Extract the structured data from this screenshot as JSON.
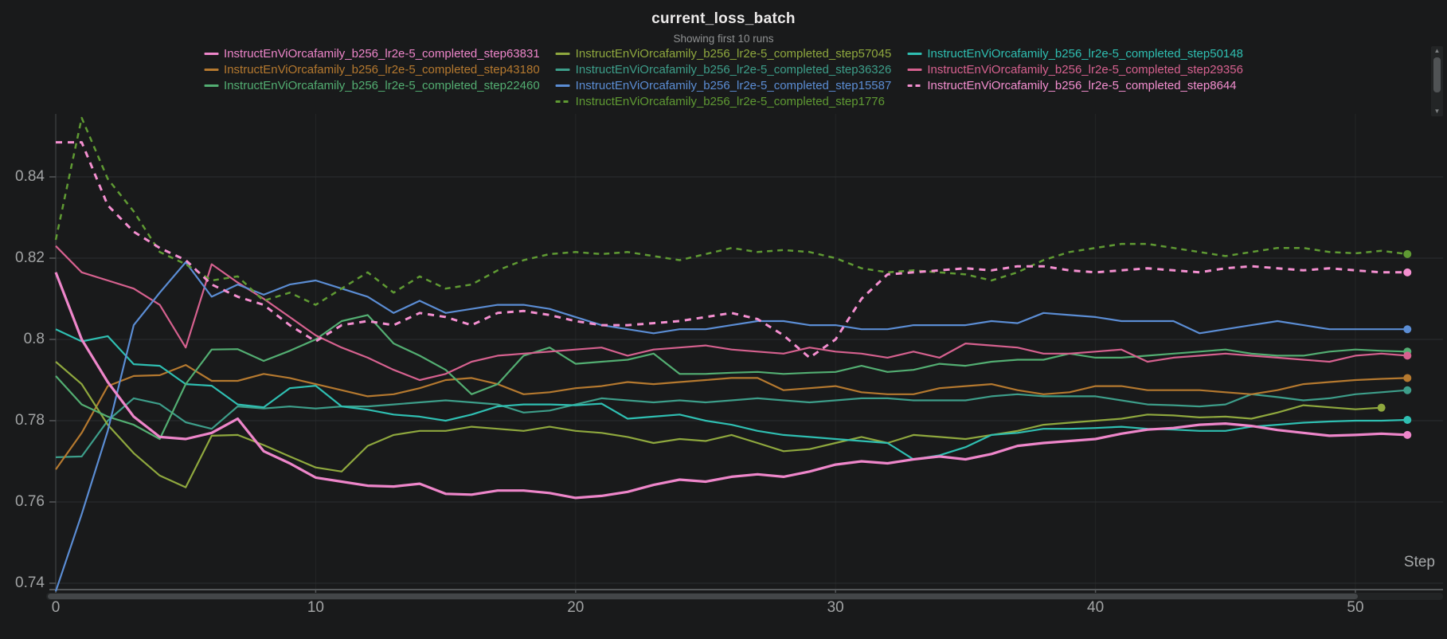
{
  "header": {
    "title": "current_loss_batch",
    "subtitle": "Showing first 10 runs"
  },
  "axes": {
    "x_label": "Step",
    "x_ticks": [
      0,
      10,
      20,
      30,
      40,
      50
    ],
    "y_ticks": [
      "0.84",
      "0.82",
      "0.8",
      "0.78",
      "0.76",
      "0.74"
    ],
    "y_tick_values": [
      0.84,
      0.82,
      0.8,
      0.78,
      0.76,
      0.74
    ]
  },
  "chart_data": {
    "type": "line",
    "title": "current_loss_batch",
    "subtitle": "Showing first 10 runs",
    "xlabel": "Step",
    "ylabel": "",
    "x_start": 0,
    "x_step": 1,
    "xlim": [
      0,
      53.5
    ],
    "ylim": [
      0.726,
      0.857
    ],
    "grid": true,
    "legend_position": "top",
    "series": [
      {
        "name": "InstructEnViOrcafamily_b256_lr2e-5_completed_step63831",
        "color": "#ee86ca",
        "dash": null,
        "width": 3.2,
        "values": [
          0.8165,
          0.8,
          0.7895,
          0.781,
          0.776,
          0.7755,
          0.777,
          0.7805,
          0.7725,
          0.7695,
          0.766,
          0.765,
          0.764,
          0.7638,
          0.7645,
          0.762,
          0.7618,
          0.7628,
          0.7628,
          0.7622,
          0.761,
          0.7615,
          0.7625,
          0.7642,
          0.7655,
          0.765,
          0.7662,
          0.7668,
          0.7662,
          0.7675,
          0.7692,
          0.77,
          0.7695,
          0.7705,
          0.7712,
          0.7705,
          0.7718,
          0.7738,
          0.7745,
          0.775,
          0.7755,
          0.7768,
          0.7778,
          0.7782,
          0.779,
          0.7793,
          0.7787,
          0.7777,
          0.777,
          0.7763,
          0.7765,
          0.7768,
          0.7765
        ]
      },
      {
        "name": "InstructEnViOrcafamily_b256_lr2e-5_completed_step57045",
        "color": "#8fa83e",
        "dash": null,
        "width": 2.2,
        "values": [
          0.7945,
          0.789,
          0.779,
          0.772,
          0.7665,
          0.7636,
          0.7763,
          0.7765,
          0.774,
          0.7712,
          0.7685,
          0.7675,
          0.7738,
          0.7765,
          0.7775,
          0.7775,
          0.7785,
          0.778,
          0.7775,
          0.7785,
          0.7775,
          0.777,
          0.776,
          0.7745,
          0.7755,
          0.775,
          0.7765,
          0.7745,
          0.7725,
          0.773,
          0.7745,
          0.776,
          0.7745,
          0.7765,
          0.776,
          0.7755,
          0.7765,
          0.7775,
          0.779,
          0.7795,
          0.78,
          0.7805,
          0.7815,
          0.7813,
          0.7808,
          0.781,
          0.7805,
          0.782,
          0.7838,
          0.7833,
          0.7828,
          0.7832
        ]
      },
      {
        "name": "InstructEnViOrcafamily_b256_lr2e-5_completed_step50148",
        "color": "#2fbfb2",
        "dash": null,
        "width": 2.2,
        "values": [
          0.8025,
          0.7995,
          0.8008,
          0.7939,
          0.7935,
          0.789,
          0.7886,
          0.784,
          0.7833,
          0.788,
          0.7886,
          0.7835,
          0.7827,
          0.7815,
          0.781,
          0.78,
          0.7815,
          0.7835,
          0.784,
          0.784,
          0.7838,
          0.7842,
          0.7805,
          0.781,
          0.7815,
          0.78,
          0.779,
          0.7775,
          0.7765,
          0.776,
          0.7755,
          0.775,
          0.7745,
          0.7705,
          0.7715,
          0.7735,
          0.7765,
          0.777,
          0.778,
          0.778,
          0.7782,
          0.7785,
          0.778,
          0.7778,
          0.7775,
          0.7775,
          0.7785,
          0.779,
          0.7795,
          0.7798,
          0.78,
          0.78,
          0.7802
        ]
      },
      {
        "name": "InstructEnViOrcafamily_b256_lr2e-5_completed_step43180",
        "color": "#b5792f",
        "dash": null,
        "width": 2.2,
        "values": [
          0.768,
          0.777,
          0.7885,
          0.791,
          0.7912,
          0.7937,
          0.7898,
          0.7898,
          0.7915,
          0.7905,
          0.789,
          0.7875,
          0.786,
          0.7865,
          0.788,
          0.79,
          0.7905,
          0.789,
          0.7865,
          0.787,
          0.788,
          0.7885,
          0.7895,
          0.789,
          0.7895,
          0.79,
          0.7905,
          0.7905,
          0.7875,
          0.788,
          0.7885,
          0.787,
          0.7865,
          0.7865,
          0.788,
          0.7885,
          0.789,
          0.7875,
          0.7865,
          0.787,
          0.7885,
          0.7885,
          0.7875,
          0.7875,
          0.7875,
          0.787,
          0.7865,
          0.7875,
          0.789,
          0.7895,
          0.79,
          0.7903,
          0.7905
        ]
      },
      {
        "name": "InstructEnViOrcafamily_b256_lr2e-5_completed_step36326",
        "color": "#3d9e8a",
        "dash": null,
        "width": 2.2,
        "values": [
          0.771,
          0.7712,
          0.78,
          0.7855,
          0.7841,
          0.7796,
          0.778,
          0.7835,
          0.783,
          0.7835,
          0.783,
          0.7835,
          0.7835,
          0.784,
          0.7845,
          0.785,
          0.7845,
          0.784,
          0.782,
          0.7825,
          0.784,
          0.7855,
          0.785,
          0.7845,
          0.785,
          0.7845,
          0.785,
          0.7855,
          0.785,
          0.7845,
          0.785,
          0.7855,
          0.7855,
          0.785,
          0.785,
          0.785,
          0.786,
          0.7865,
          0.786,
          0.786,
          0.786,
          0.785,
          0.784,
          0.7838,
          0.7835,
          0.784,
          0.7865,
          0.7858,
          0.785,
          0.7855,
          0.7865,
          0.787,
          0.7875
        ]
      },
      {
        "name": "InstructEnViOrcafamily_b256_lr2e-5_completed_step29356",
        "color": "#d6618f",
        "dash": null,
        "width": 2.2,
        "values": [
          0.823,
          0.8165,
          0.8145,
          0.8125,
          0.8085,
          0.798,
          0.8185,
          0.814,
          0.81,
          0.8055,
          0.801,
          0.798,
          0.7955,
          0.7925,
          0.79,
          0.7915,
          0.7945,
          0.796,
          0.7965,
          0.797,
          0.7975,
          0.798,
          0.796,
          0.7975,
          0.798,
          0.7985,
          0.7975,
          0.797,
          0.7965,
          0.798,
          0.797,
          0.7965,
          0.7955,
          0.797,
          0.7955,
          0.799,
          0.7985,
          0.798,
          0.7965,
          0.7965,
          0.797,
          0.7975,
          0.7945,
          0.7955,
          0.796,
          0.7965,
          0.796,
          0.7955,
          0.795,
          0.7945,
          0.796,
          0.7965,
          0.796
        ]
      },
      {
        "name": "InstructEnViOrcafamily_b256_lr2e-5_completed_step22460",
        "color": "#53ae72",
        "dash": null,
        "width": 2.2,
        "values": [
          0.791,
          0.784,
          0.781,
          0.779,
          0.7755,
          0.789,
          0.7975,
          0.7976,
          0.7947,
          0.7972,
          0.8,
          0.8045,
          0.806,
          0.799,
          0.796,
          0.7925,
          0.7865,
          0.789,
          0.796,
          0.798,
          0.794,
          0.7945,
          0.795,
          0.7965,
          0.7915,
          0.7915,
          0.7918,
          0.792,
          0.7915,
          0.7918,
          0.792,
          0.7935,
          0.792,
          0.7925,
          0.794,
          0.7935,
          0.7945,
          0.795,
          0.795,
          0.7965,
          0.7955,
          0.7955,
          0.796,
          0.7965,
          0.797,
          0.7975,
          0.7965,
          0.796,
          0.796,
          0.797,
          0.7975,
          0.7972,
          0.797
        ]
      },
      {
        "name": "InstructEnViOrcafamily_b256_lr2e-5_completed_step15587",
        "color": "#5b8dd4",
        "dash": null,
        "width": 2.2,
        "values": [
          0.738,
          0.757,
          0.7775,
          0.8035,
          0.8115,
          0.819,
          0.8105,
          0.8135,
          0.811,
          0.8135,
          0.8145,
          0.8125,
          0.8105,
          0.8065,
          0.8095,
          0.8065,
          0.8075,
          0.8085,
          0.8085,
          0.8075,
          0.8055,
          0.8035,
          0.8025,
          0.8015,
          0.8025,
          0.8025,
          0.8035,
          0.8045,
          0.8045,
          0.8035,
          0.8035,
          0.8025,
          0.8025,
          0.8035,
          0.8035,
          0.8035,
          0.8045,
          0.804,
          0.8065,
          0.806,
          0.8055,
          0.8045,
          0.8045,
          0.8045,
          0.8015,
          0.8025,
          0.8035,
          0.8045,
          0.8035,
          0.8025,
          0.8025,
          0.8025,
          0.8025
        ]
      },
      {
        "name": "InstructEnViOrcafamily_b256_lr2e-5_completed_step8644",
        "color": "#f48fd0",
        "dash": "8 7",
        "width": 3,
        "values": [
          0.8485,
          0.8485,
          0.833,
          0.8265,
          0.8225,
          0.8195,
          0.8135,
          0.8105,
          0.8085,
          0.8035,
          0.7995,
          0.8035,
          0.8045,
          0.8035,
          0.8065,
          0.8055,
          0.8035,
          0.8065,
          0.807,
          0.806,
          0.8045,
          0.8035,
          0.8035,
          0.804,
          0.8045,
          0.8055,
          0.8065,
          0.805,
          0.801,
          0.7955,
          0.8,
          0.81,
          0.816,
          0.8165,
          0.817,
          0.8175,
          0.817,
          0.818,
          0.818,
          0.817,
          0.8165,
          0.817,
          0.8175,
          0.817,
          0.8165,
          0.8175,
          0.818,
          0.8175,
          0.817,
          0.8175,
          0.817,
          0.8165,
          0.8165
        ]
      },
      {
        "name": "InstructEnViOrcafamily_b256_lr2e-5_completed_step1776",
        "color": "#5f9a33",
        "dash": "7 6",
        "width": 2.5,
        "values": [
          0.8245,
          0.8545,
          0.8395,
          0.8315,
          0.8215,
          0.8185,
          0.8145,
          0.8155,
          0.8095,
          0.8115,
          0.8085,
          0.8125,
          0.8165,
          0.8115,
          0.8155,
          0.8125,
          0.8135,
          0.817,
          0.8195,
          0.821,
          0.8215,
          0.821,
          0.8215,
          0.8205,
          0.8195,
          0.821,
          0.8225,
          0.8215,
          0.822,
          0.8215,
          0.82,
          0.8175,
          0.8165,
          0.817,
          0.8165,
          0.816,
          0.8145,
          0.8165,
          0.8195,
          0.8215,
          0.8225,
          0.8235,
          0.8235,
          0.8225,
          0.8215,
          0.8205,
          0.8215,
          0.8225,
          0.8225,
          0.8215,
          0.8212,
          0.8218,
          0.821
        ]
      }
    ]
  },
  "colors": {
    "background": "#191a1b",
    "gridline": "#2c2f30",
    "grid_vertical": "#232526",
    "axis_line": "#55585a",
    "tick_text": "#a2a4a5",
    "title_text": "#eceaea",
    "subtitle_text": "#8f9192"
  }
}
